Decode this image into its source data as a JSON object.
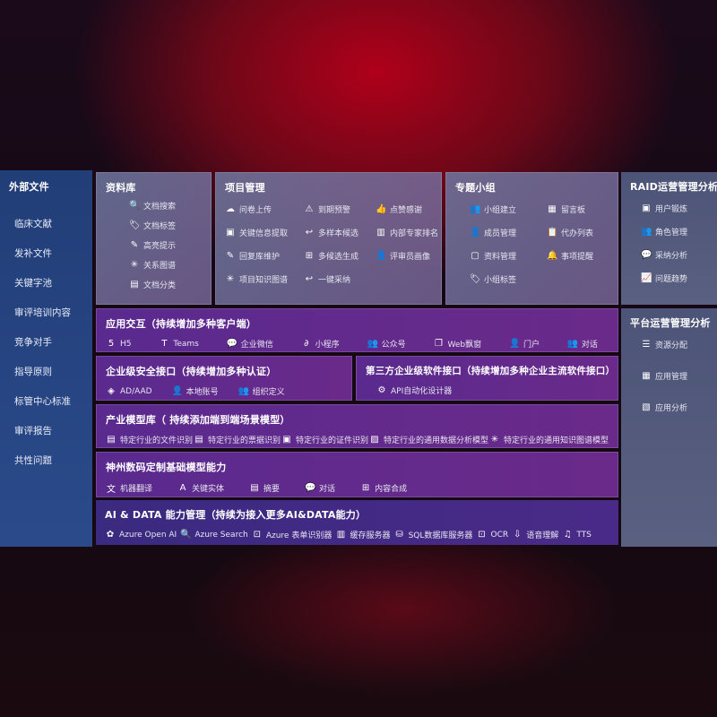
{
  "sidebar": {
    "title": "外部文件",
    "items": [
      "临床文献",
      "发补文件",
      "关键字池",
      "审评培训内容",
      "竞争对手",
      "指导原则",
      "标管中心标准",
      "审评报告",
      "共性问题"
    ]
  },
  "library": {
    "title": "资料库",
    "items": [
      {
        "icon": "document-search-icon",
        "g": "🔍",
        "label": "文档搜索"
      },
      {
        "icon": "tag-icon",
        "g": "🏷",
        "label": "文档标签"
      },
      {
        "icon": "pen-icon",
        "g": "✎",
        "label": "高亮提示"
      },
      {
        "icon": "graph-icon",
        "g": "✳",
        "label": "关系图谱"
      },
      {
        "icon": "classify-icon",
        "g": "▤",
        "label": "文档分类"
      }
    ]
  },
  "project": {
    "title": "项目管理",
    "items": [
      {
        "icon": "cloud-upload-icon",
        "g": "☁",
        "label": "问卷上传"
      },
      {
        "icon": "alarm-icon",
        "g": "⚠",
        "label": "到期预警"
      },
      {
        "icon": "thumbs-up-icon",
        "g": "👍",
        "label": "点赞感谢"
      },
      {
        "icon": "extract-icon",
        "g": "▣",
        "label": "关键信息提取"
      },
      {
        "icon": "reply-icon",
        "g": "↩",
        "label": "多样本候选"
      },
      {
        "icon": "ranking-icon",
        "g": "▥",
        "label": "内部专家排名"
      },
      {
        "icon": "edit-icon",
        "g": "✎",
        "label": "回复库维护"
      },
      {
        "icon": "puzzle-icon",
        "g": "⊞",
        "label": "多候选生成"
      },
      {
        "icon": "user-icon",
        "g": "👤",
        "label": "评审员画像"
      },
      {
        "icon": "graph-icon",
        "g": "✳",
        "label": "项目知识图谱"
      },
      {
        "icon": "reply-icon",
        "g": "↩",
        "label": "一键采纳"
      }
    ]
  },
  "group": {
    "title": "专题小组",
    "items": [
      {
        "icon": "users-icon",
        "g": "👥",
        "label": "小组建立"
      },
      {
        "icon": "bbs-icon",
        "g": "▦",
        "label": "留言板"
      },
      {
        "icon": "member-icon",
        "g": "👤",
        "label": "成员管理"
      },
      {
        "icon": "clipboard-icon",
        "g": "📋",
        "label": "代办列表"
      },
      {
        "icon": "folder-icon",
        "g": "▢",
        "label": "资料管理"
      },
      {
        "icon": "bell-icon",
        "g": "🔔",
        "label": "事项提醒"
      },
      {
        "icon": "tag-icon",
        "g": "🏷",
        "label": "小组标签"
      }
    ]
  },
  "raid": {
    "title": "RAID运营管理分析",
    "items": [
      {
        "icon": "id-card-icon",
        "g": "▣",
        "label": "用户锻炼"
      },
      {
        "icon": "users-icon",
        "g": "👥",
        "label": "角色管理"
      },
      {
        "icon": "qa-icon",
        "g": "💬",
        "label": "采纳分析"
      },
      {
        "icon": "trend-icon",
        "g": "📈",
        "label": "问题趋势"
      }
    ]
  },
  "platform": {
    "title": "平台运营管理分析",
    "items": [
      {
        "icon": "list-icon",
        "g": "☰",
        "label": "资源分配"
      },
      {
        "icon": "apps-icon",
        "g": "▦",
        "label": "应用管理"
      },
      {
        "icon": "analysis-icon",
        "g": "▧",
        "label": "应用分析"
      }
    ]
  },
  "interaction": {
    "title": "应用交互（持续增加多种客户端）",
    "items": [
      {
        "icon": "html5-icon",
        "g": "5",
        "label": "H5"
      },
      {
        "icon": "teams-icon",
        "g": "T",
        "label": "Teams"
      },
      {
        "icon": "wecom-icon",
        "g": "💬",
        "label": "企业微信"
      },
      {
        "icon": "miniprogram-icon",
        "g": "∂",
        "label": "小程序"
      },
      {
        "icon": "official-account-icon",
        "g": "👥",
        "label": "公众号"
      },
      {
        "icon": "window-icon",
        "g": "❐",
        "label": "Web飘窗"
      },
      {
        "icon": "portal-icon",
        "g": "👤",
        "label": "门户"
      },
      {
        "icon": "chat-icon",
        "g": "👥",
        "label": "对话"
      }
    ]
  },
  "security": {
    "title": "企业级安全接口（持续增加多种认证）",
    "items": [
      {
        "icon": "ad-icon",
        "g": "◈",
        "label": "AD/AAD"
      },
      {
        "icon": "local-account-icon",
        "g": "👤",
        "label": "本地账号"
      },
      {
        "icon": "org-icon",
        "g": "👥",
        "label": "组织定义"
      }
    ]
  },
  "thirdparty": {
    "title": "第三方企业级软件接口（持续增加多种企业主流软件接口）",
    "items": [
      {
        "icon": "gear-icon",
        "g": "⚙",
        "label": "API自动化设计器"
      }
    ]
  },
  "industry": {
    "title": "产业模型库（ 持续添加端到端场景模型）",
    "items": [
      {
        "icon": "file-icon",
        "g": "▤",
        "label": "特定行业的文件识别"
      },
      {
        "icon": "receipt-icon",
        "g": "▤",
        "label": "特定行业的票据识别"
      },
      {
        "icon": "id-card-icon",
        "g": "▣",
        "label": "特定行业的证件识别"
      },
      {
        "icon": "chart-icon",
        "g": "▨",
        "label": "特定行业的通用数据分析模型"
      },
      {
        "icon": "graph-icon",
        "g": "✳",
        "label": "特定行业的通用知识图谱模型"
      }
    ]
  },
  "base": {
    "title": "神州数码定制基础模型能力",
    "items": [
      {
        "icon": "translate-icon",
        "g": "文",
        "label": "机器翻译"
      },
      {
        "icon": "entity-icon",
        "g": "A",
        "label": "关键实体"
      },
      {
        "icon": "summary-icon",
        "g": "▤",
        "label": "摘要"
      },
      {
        "icon": "chat-icon",
        "g": "💬",
        "label": "对话"
      },
      {
        "icon": "compose-icon",
        "g": "⊞",
        "label": "内容合成"
      }
    ]
  },
  "aidata": {
    "title": "AI & DATA 能力管理（持续为接入更多AI&DATA能力）",
    "items": [
      {
        "icon": "openai-icon",
        "g": "✿",
        "label": "Azure Open AI"
      },
      {
        "icon": "search-icon",
        "g": "🔍",
        "label": "Azure Search"
      },
      {
        "icon": "form-icon",
        "g": "⊡",
        "label": "Azure 表单识别器"
      },
      {
        "icon": "cache-icon",
        "g": "▥",
        "label": "缓存服务器"
      },
      {
        "icon": "database-icon",
        "g": "⛁",
        "label": "SQL数据库服务器"
      },
      {
        "icon": "ocr-icon",
        "g": "⊡",
        "label": "OCR"
      },
      {
        "icon": "speech-icon",
        "g": "⇩",
        "label": "语音理解"
      },
      {
        "icon": "tts-icon",
        "g": "♫",
        "label": "TTS"
      }
    ]
  }
}
